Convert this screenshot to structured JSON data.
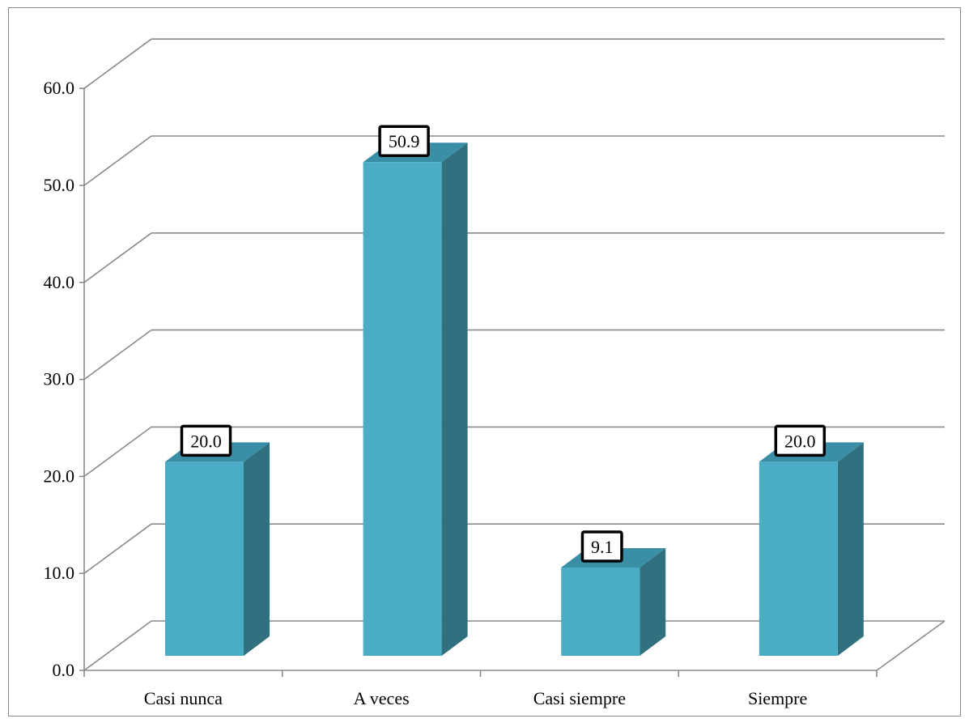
{
  "chart_data": {
    "type": "bar",
    "style": "3d-column",
    "categories": [
      "Casi nunca",
      "A veces",
      "Casi siempre",
      "Siempre"
    ],
    "values": [
      20.0,
      50.9,
      9.1,
      20.0
    ],
    "data_labels": [
      "20.0",
      "50.9",
      "9.1",
      "20.0"
    ],
    "y_ticks": [
      "0.0",
      "10.0",
      "20.0",
      "30.0",
      "40.0",
      "50.0",
      "60.0"
    ],
    "ylim": [
      0,
      60
    ],
    "grid": true,
    "legend": "none",
    "colors": {
      "bar_front": "#4bacc6",
      "bar_side": "#31707f",
      "bar_top": "#3a8fa6",
      "grid": "#8a8a8a",
      "frame": "#8a8a8a"
    }
  }
}
